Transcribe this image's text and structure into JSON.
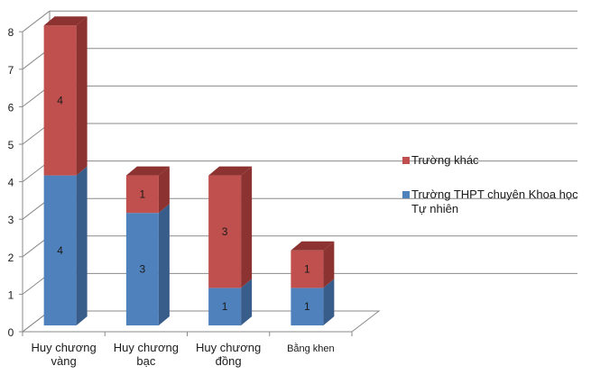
{
  "chart_data": {
    "type": "bar",
    "stacked": true,
    "three_d": true,
    "title": "",
    "xlabel": "",
    "ylabel": "",
    "categories": [
      "Huy chương vàng",
      "Huy chương bạc",
      "Huy chương đồng",
      "Bằng khen"
    ],
    "category_lines": [
      [
        "Huy chương",
        "vàng"
      ],
      [
        "Huy chương",
        "bạc"
      ],
      [
        "Huy chương",
        "đồng"
      ],
      [
        "Bằng khen"
      ]
    ],
    "series": [
      {
        "name": "Trường THPT chuyên Khoa học Tự nhiên",
        "color": "#4F81BD",
        "side_color": "#385D8A",
        "values": [
          4,
          3,
          1,
          1
        ]
      },
      {
        "name": "Trường khác",
        "color": "#C0504D",
        "side_color": "#8C3331",
        "values": [
          4,
          1,
          3,
          1
        ]
      }
    ],
    "yticks": [
      0,
      1,
      2,
      3,
      4,
      5,
      6,
      7,
      8
    ],
    "ylim": [
      0,
      8
    ],
    "grid": true,
    "legend_position": "right",
    "data_labels": true
  },
  "legend": {
    "items": [
      {
        "label": "Trường khác",
        "color": "#C0504D"
      },
      {
        "label": "Trường THPT chuyên Khoa học Tự nhiên",
        "color": "#4F81BD"
      }
    ]
  }
}
